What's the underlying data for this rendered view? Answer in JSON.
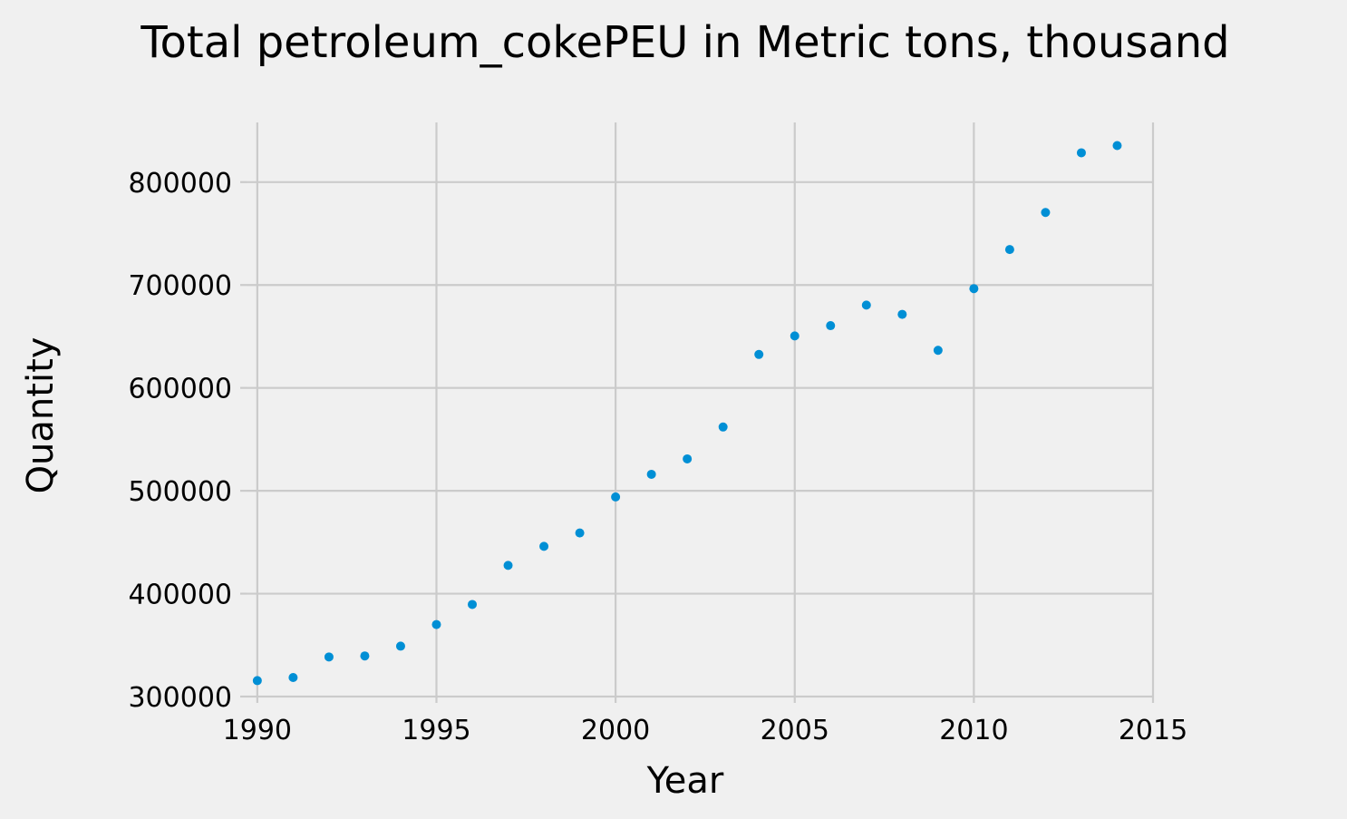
{
  "chart_data": {
    "type": "scatter",
    "title": "Total petroleum_cokePEU in Metric tons,  thousand",
    "xlabel": "Year",
    "ylabel": "Quantity",
    "xlim": [
      1989.7,
      2015
    ],
    "ylim": [
      300000,
      858000
    ],
    "xticks": [
      1990,
      1995,
      2000,
      2005,
      2010,
      2015
    ],
    "yticks": [
      300000,
      400000,
      500000,
      600000,
      700000,
      800000
    ],
    "grid": true,
    "colors": {
      "series": "#008fd5",
      "background": "#f0f0f0",
      "grid": "#cbcbcb"
    },
    "series": [
      {
        "x": [
          1990,
          1991,
          1992,
          1993,
          1994,
          1995,
          1996,
          1997,
          1998,
          1999,
          2000,
          2001,
          2002,
          2003,
          2004,
          2005,
          2006,
          2007,
          2008,
          2009,
          2010,
          2011,
          2012,
          2013,
          2014
        ],
        "y": [
          315500,
          318500,
          338500,
          339500,
          349000,
          370000,
          389500,
          427500,
          446000,
          459000,
          494000,
          516000,
          531000,
          562000,
          632500,
          650500,
          660500,
          680500,
          671500,
          636500,
          696500,
          734500,
          770500,
          828500,
          835500
        ]
      }
    ]
  }
}
